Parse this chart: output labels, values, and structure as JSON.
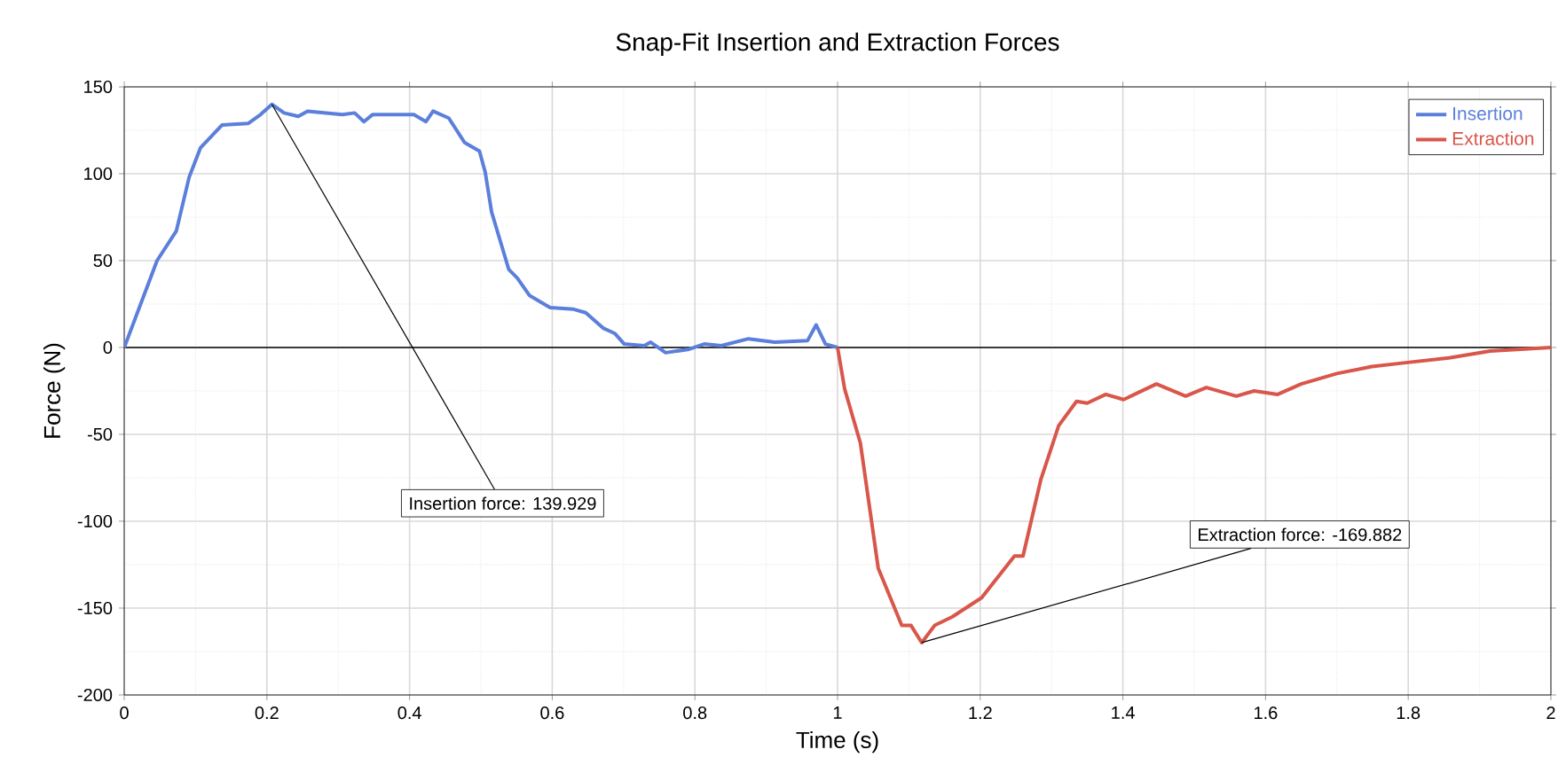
{
  "chart_data": {
    "type": "line",
    "title": "Snap-Fit Insertion and Extraction Forces",
    "xlabel": "Time (s)",
    "ylabel": "Force (N)",
    "xlim": [
      0,
      2
    ],
    "ylim": [
      -200,
      150
    ],
    "xticks": [
      0,
      0.2,
      0.4,
      0.6,
      0.8,
      1,
      1.2,
      1.4,
      1.6,
      1.8,
      2
    ],
    "yticks": [
      -200,
      -150,
      -100,
      -50,
      0,
      50,
      100,
      150
    ],
    "grid": true,
    "legend": "top right",
    "marker": "none",
    "line_style": "solid",
    "ref_lines": [
      {
        "axis": "y",
        "value": 0,
        "color": "#000000"
      }
    ],
    "annotations": [
      {
        "text": "Insertion force: 139.929",
        "x": 0.207,
        "y": 139.929
      },
      {
        "text": "Extraction force: -169.882",
        "x": 1.118,
        "y": -169.882
      }
    ],
    "series": [
      {
        "name": "Insertion",
        "color": "#5b7fdb",
        "x": [
          0,
          0.046,
          0.073,
          0.091,
          0.107,
          0.137,
          0.174,
          0.191,
          0.207,
          0.224,
          0.244,
          0.257,
          0.306,
          0.323,
          0.336,
          0.348,
          0.406,
          0.423,
          0.433,
          0.455,
          0.477,
          0.498,
          0.506,
          0.515,
          0.539,
          0.551,
          0.568,
          0.597,
          0.63,
          0.647,
          0.672,
          0.688,
          0.701,
          0.729,
          0.738,
          0.759,
          0.792,
          0.813,
          0.837,
          0.875,
          0.912,
          0.958,
          0.97,
          0.983,
          1.0
        ],
        "values": [
          0,
          50,
          67,
          98,
          115,
          128,
          129,
          134,
          139.929,
          135,
          133,
          136,
          134,
          135,
          130,
          134,
          134,
          130,
          136,
          132,
          118,
          113,
          101,
          78,
          45,
          40,
          30,
          23,
          22,
          20,
          11,
          8,
          2,
          1,
          3,
          -3,
          -1,
          2,
          1,
          5,
          3,
          4,
          13,
          2,
          0
        ]
      },
      {
        "name": "Extraction",
        "color": "#d9564a",
        "x": [
          1.0,
          1.01,
          1.032,
          1.057,
          1.09,
          1.103,
          1.118,
          1.136,
          1.161,
          1.202,
          1.248,
          1.26,
          1.285,
          1.31,
          1.335,
          1.35,
          1.376,
          1.401,
          1.447,
          1.488,
          1.517,
          1.559,
          1.584,
          1.617,
          1.65,
          1.7,
          1.749,
          1.791,
          1.857,
          1.915,
          2.0
        ],
        "values": [
          0,
          -24,
          -55,
          -127,
          -160,
          -160,
          -169.882,
          -160,
          -155,
          -144,
          -120,
          -120,
          -76,
          -45,
          -31,
          -32,
          -27,
          -30,
          -21,
          -28,
          -23,
          -28,
          -25,
          -27,
          -21,
          -15,
          -11,
          -9,
          -6,
          -2,
          0
        ]
      }
    ]
  }
}
